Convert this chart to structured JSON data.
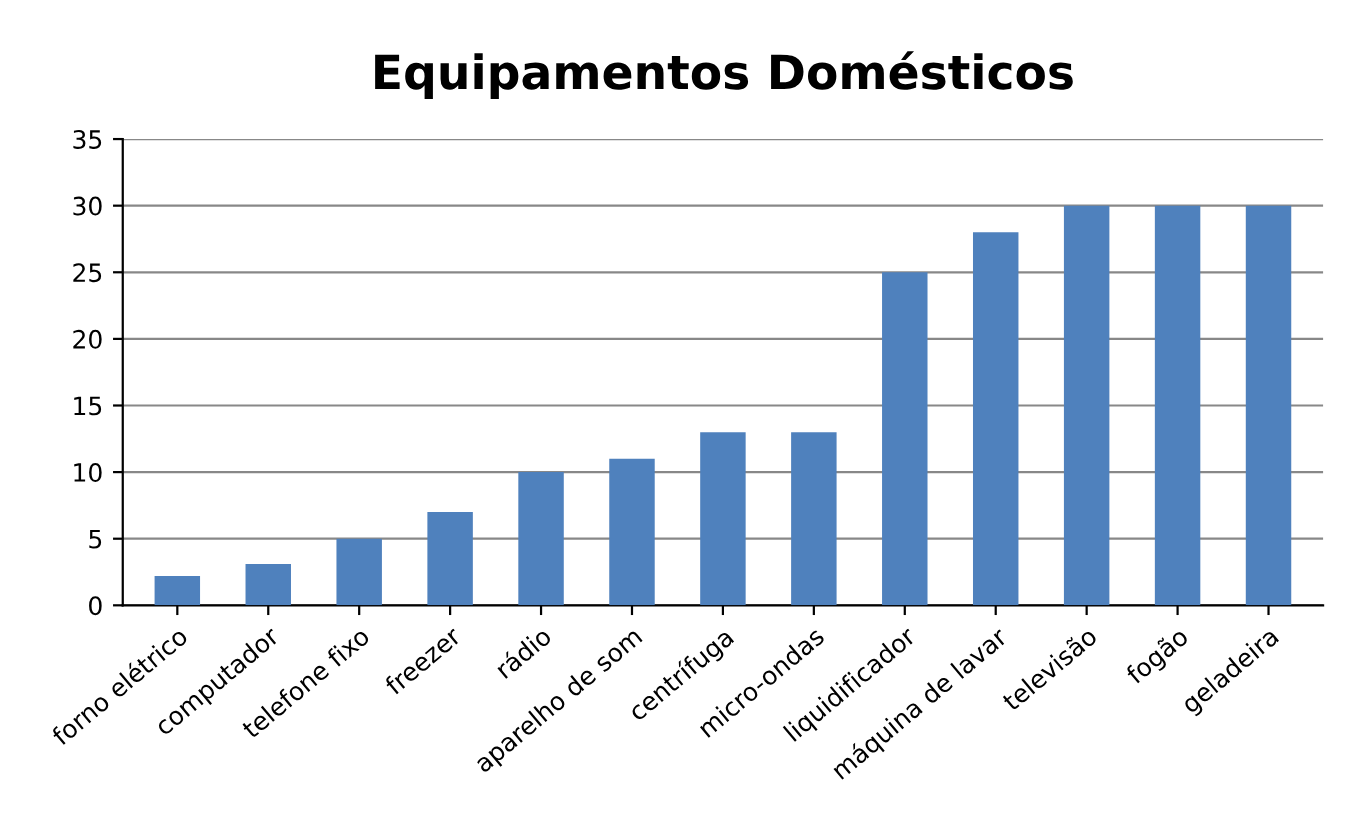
{
  "chart_data": {
    "type": "bar",
    "title": "Equipamentos Domésticos",
    "categories": [
      "forno elétrico",
      "computador",
      "telefone fixo",
      "freezer",
      "rádio",
      "aparelho de som",
      "centrífuga",
      "micro-ondas",
      "liquidificador",
      "máquina de lavar",
      "televisão",
      "fogão",
      "geladeira"
    ],
    "values": [
      2.2,
      3.1,
      5,
      7,
      10,
      11,
      13,
      13,
      25,
      28,
      30,
      30,
      30
    ],
    "color": "#4f81bd",
    "ylim": [
      0,
      35
    ],
    "yticks": [
      0,
      5,
      10,
      15,
      20,
      25,
      30,
      35
    ],
    "grid": "y",
    "legend": false
  }
}
